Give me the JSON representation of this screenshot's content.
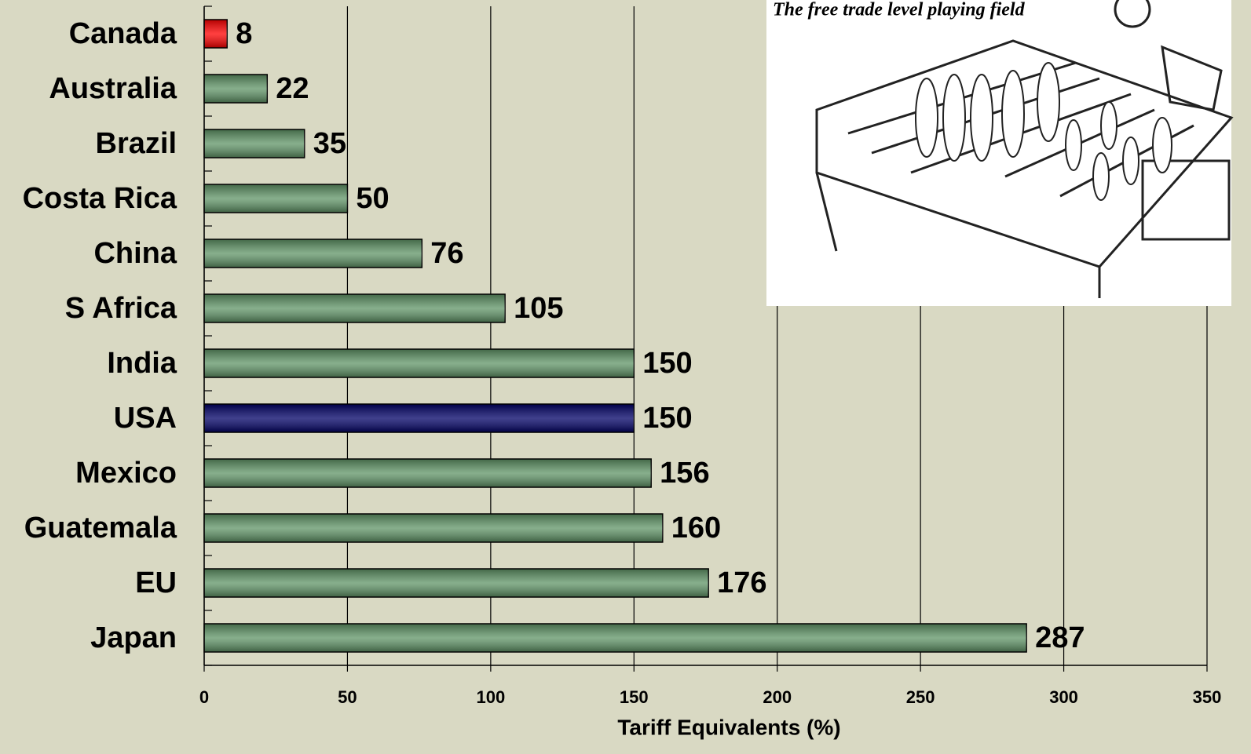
{
  "chart_data": {
    "type": "barh",
    "categories": [
      "Canada",
      "Australia",
      "Brazil",
      "Costa Rica",
      "China",
      "S Africa",
      "India",
      "USA",
      "Mexico",
      "Guatemala",
      "EU",
      "Japan"
    ],
    "values": [
      8,
      22,
      35,
      50,
      76,
      105,
      150,
      150,
      156,
      160,
      176,
      287
    ],
    "colors": [
      "#ff0000",
      "#5f9466",
      "#5f9466",
      "#5f9466",
      "#5f9466",
      "#5f9466",
      "#5f9466",
      "#000066",
      "#5f9466",
      "#5f9466",
      "#5f9466",
      "#5f9466"
    ],
    "xlabel": "Tariff Equivalents (%)",
    "xlim": [
      0,
      350
    ],
    "xticks": [
      0,
      50,
      100,
      150,
      200,
      250,
      300,
      350
    ],
    "grid": true,
    "annotation": "The free trade level playing field"
  }
}
